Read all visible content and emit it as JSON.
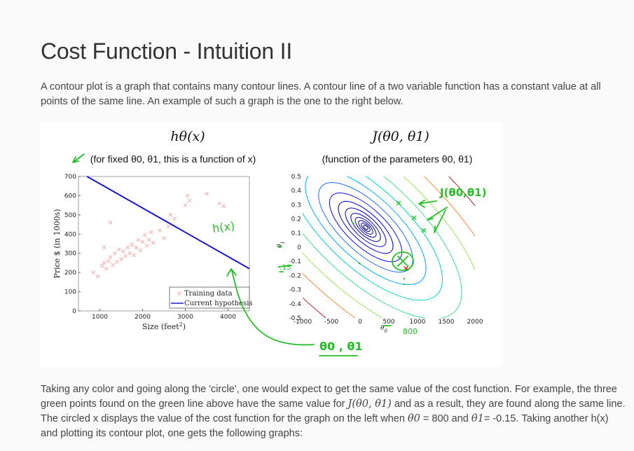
{
  "page": {
    "title": "Cost Function - Intuition II",
    "intro": "A contour plot is a graph that contains many contour lines. A contour line of a two variable function has a constant value at all points of the same line. An example of such a graph is the one to the right below.",
    "body_part1": "Taking any color and going along the 'circle', one would expect to get the same value of the cost function. For example, the three green points found on the green line above have the same value for",
    "body_math1": "J(θ0, θ1)",
    "body_part2": "and as a result, they are found along the same line. The circled x displays the value of the cost function for the graph on the left when",
    "body_math2": "θ0",
    "body_part3": "= 800 and",
    "body_math3": "θ1",
    "body_part4": "= -0.15. Taking another h(x) and plotting its contour plot, one gets the following graphs:"
  },
  "figure": {
    "left_title": "hθ(x)",
    "left_subtitle": "(for fixed θ0, θ1, this is a function of x)",
    "right_title": "J(θ0, θ1)",
    "right_subtitle": "(function of the parameters θ0, θ1)",
    "annotations": {
      "hx": "h(x)",
      "theta_pair": "θ0 , θ1",
      "j_label": "J(θ0,θ1)",
      "theta0_value": "800",
      "theta1_value": "-.15"
    }
  },
  "chart_data": [
    {
      "type": "scatter",
      "xlabel": "Size (feet²)",
      "ylabel": "Price $ (in 1000s)",
      "xlim": [
        500,
        4500
      ],
      "ylim": [
        0,
        700
      ],
      "xticks": [
        1000,
        2000,
        3000,
        4000
      ],
      "yticks": [
        0,
        100,
        200,
        300,
        400,
        500,
        600,
        700
      ],
      "legend": [
        "Training data",
        "Current hypothesis"
      ],
      "legend_placement": "bottom-right",
      "series": [
        {
          "name": "Training data",
          "marker": "x",
          "color": "#f4a6a6",
          "points": [
            [
              850,
              200
            ],
            [
              950,
              180
            ],
            [
              1050,
              235
            ],
            [
              1100,
              250
            ],
            [
              1150,
              220
            ],
            [
              1200,
              260
            ],
            [
              1250,
              280
            ],
            [
              1300,
              240
            ],
            [
              1350,
              300
            ],
            [
              1400,
              255
            ],
            [
              1450,
              320
            ],
            [
              1500,
              270
            ],
            [
              1550,
              310
            ],
            [
              1600,
              285
            ],
            [
              1650,
              330
            ],
            [
              1700,
              300
            ],
            [
              1750,
              345
            ],
            [
              1800,
              290
            ],
            [
              1850,
              330
            ],
            [
              1900,
              370
            ],
            [
              1950,
              315
            ],
            [
              2000,
              360
            ],
            [
              2050,
              395
            ],
            [
              2100,
              340
            ],
            [
              2150,
              370
            ],
            [
              2200,
              410
            ],
            [
              2250,
              355
            ],
            [
              2400,
              420
            ],
            [
              2500,
              380
            ],
            [
              2600,
              440
            ],
            [
              2650,
              500
            ],
            [
              2750,
              480
            ],
            [
              3000,
              550
            ],
            [
              3050,
              600
            ],
            [
              3100,
              575
            ],
            [
              3500,
              610
            ],
            [
              3800,
              560
            ],
            [
              3900,
              545
            ],
            [
              1250,
              460
            ],
            [
              1100,
              330
            ]
          ]
        },
        {
          "name": "Current hypothesis",
          "line": true,
          "color": "#1a1acc",
          "points": [
            [
              700,
              700
            ],
            [
              4500,
              220
            ]
          ]
        }
      ]
    },
    {
      "type": "contour",
      "xlabel": "θ0",
      "ylabel": "θ1",
      "xlim": [
        -1000,
        2000
      ],
      "ylim": [
        -0.5,
        0.5
      ],
      "xticks": [
        -1000,
        -500,
        0,
        500,
        1000,
        1500,
        2000
      ],
      "yticks": [
        -0.5,
        -0.4,
        -0.3,
        -0.2,
        -0.1,
        0,
        0.1,
        0.2,
        0.3,
        0.4,
        0.5
      ],
      "minimum": [
        0,
        0.2
      ],
      "circled_point": [
        800,
        -0.15
      ]
    }
  ]
}
